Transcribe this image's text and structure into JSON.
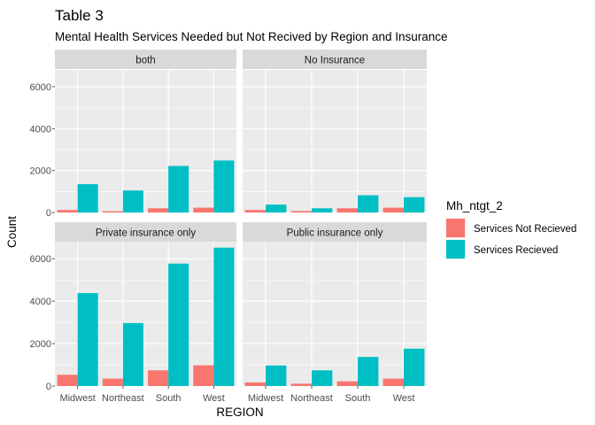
{
  "chart_data": {
    "type": "bar",
    "title": "Table 3",
    "subtitle": "Mental Health Services Needed but Not Recived by Region and Insurance",
    "xlabel": "REGION",
    "ylabel": "Count",
    "ylim": [
      0,
      6800
    ],
    "yticks": [
      0,
      2000,
      4000,
      6000
    ],
    "categories": [
      "Midwest",
      "Northeast",
      "South",
      "West"
    ],
    "legend": {
      "title": "Mh_ntgt_2",
      "position": "right"
    },
    "colors": {
      "Services Not Recieved": "#F8766D",
      "Services Recieved": "#00BFC4",
      "panel_bg": "#EBEBEB",
      "grid": "#FFFFFF",
      "strip_bg": "#D9D9D9"
    },
    "panels": [
      {
        "name": "both",
        "series": [
          {
            "name": "Services Not Recieved",
            "values": [
              120,
              60,
              200,
              230
            ]
          },
          {
            "name": "Services Recieved",
            "values": [
              1350,
              1050,
              2220,
              2480
            ]
          }
        ]
      },
      {
        "name": "No Insurance",
        "series": [
          {
            "name": "Services Not Recieved",
            "values": [
              120,
              70,
              200,
              230
            ]
          },
          {
            "name": "Services Recieved",
            "values": [
              380,
              200,
              820,
              730
            ]
          }
        ]
      },
      {
        "name": "Private insurance only",
        "series": [
          {
            "name": "Services Not Recieved",
            "values": [
              530,
              350,
              740,
              980
            ]
          },
          {
            "name": "Services Recieved",
            "values": [
              4380,
              2970,
              5770,
              6520
            ]
          }
        ]
      },
      {
        "name": "Public insurance only",
        "series": [
          {
            "name": "Services Not Recieved",
            "values": [
              170,
              110,
              220,
              350
            ]
          },
          {
            "name": "Services Recieved",
            "values": [
              970,
              740,
              1370,
              1760
            ]
          }
        ]
      }
    ]
  }
}
